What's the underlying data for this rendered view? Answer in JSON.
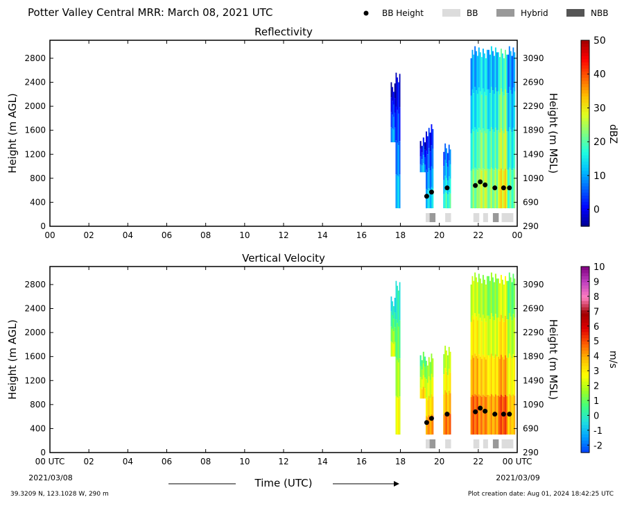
{
  "header": {
    "title": "Potter Valley Central MRR:  March 08, 2021 UTC"
  },
  "legend": {
    "items": [
      {
        "label": "BB Height",
        "kind": "dot",
        "color": "#000000"
      },
      {
        "label": "BB",
        "kind": "box",
        "color": "#dcdcdc"
      },
      {
        "label": "Hybrid",
        "kind": "box",
        "color": "#999999"
      },
      {
        "label": "NBB",
        "kind": "box",
        "color": "#555555"
      }
    ]
  },
  "x_axis": {
    "xlabel": "Time (UTC)",
    "ticks": [
      "00",
      "02",
      "04",
      "06",
      "08",
      "10",
      "12",
      "14",
      "16",
      "18",
      "20",
      "22",
      "00"
    ],
    "bottom_ticks": [
      "00 UTC",
      "02",
      "04",
      "06",
      "08",
      "10",
      "12",
      "14",
      "16",
      "18",
      "20",
      "22",
      "00 UTC"
    ],
    "start_date": "2021/03/08",
    "end_date": "2021/03/09"
  },
  "footer": {
    "location": "39.3209 N, 123.1028 W, 290 m",
    "created": "Plot creation date: Aug 01, 2024 18:42:25 UTC"
  },
  "chart_data": [
    {
      "type": "heatmap",
      "title": "Reflectivity",
      "ylabel": "Height (m AGL)",
      "y2label": "Height (m MSL)",
      "xlim": [
        0,
        24
      ],
      "ylim": [
        0,
        3100
      ],
      "y_ticks": [
        0,
        400,
        800,
        1200,
        1600,
        2000,
        2400,
        2800
      ],
      "y2_ticks": [
        290,
        690,
        1090,
        1490,
        1890,
        2290,
        2690,
        3090
      ],
      "colorbar": {
        "label": "dBZ",
        "range": [
          -5,
          50
        ],
        "ticks": [
          "0",
          "10",
          "20",
          "30",
          "40",
          "50"
        ],
        "tick_values": [
          0,
          10,
          20,
          30,
          40,
          50
        ]
      },
      "precip_segments": [
        {
          "x0": 17.5,
          "x1": 17.75,
          "top": 2400,
          "bottom": 1400,
          "level": 2
        },
        {
          "x0": 17.75,
          "x1": 18.0,
          "top": 2600,
          "bottom": 300,
          "level": 4
        },
        {
          "x0": 19.0,
          "x1": 19.3,
          "top": 1500,
          "bottom": 900,
          "level": 3
        },
        {
          "x0": 19.3,
          "x1": 19.7,
          "top": 1700,
          "bottom": 300,
          "level": 5
        },
        {
          "x0": 20.2,
          "x1": 20.6,
          "top": 1400,
          "bottom": 300,
          "level": 10
        },
        {
          "x0": 21.6,
          "x1": 22.0,
          "top": 3000,
          "bottom": 300,
          "level": 14
        },
        {
          "x0": 22.0,
          "x1": 22.5,
          "top": 3000,
          "bottom": 300,
          "level": 18
        },
        {
          "x0": 22.5,
          "x1": 23.0,
          "top": 3000,
          "bottom": 300,
          "level": 15
        },
        {
          "x0": 23.0,
          "x1": 23.5,
          "top": 3000,
          "bottom": 300,
          "level": 22
        },
        {
          "x0": 23.5,
          "x1": 23.9,
          "top": 3000,
          "bottom": 300,
          "level": 12
        }
      ],
      "bb_height": [
        {
          "x": 19.35,
          "y": 500
        },
        {
          "x": 19.6,
          "y": 570
        },
        {
          "x": 20.4,
          "y": 640
        },
        {
          "x": 21.85,
          "y": 680
        },
        {
          "x": 22.1,
          "y": 740
        },
        {
          "x": 22.35,
          "y": 690
        },
        {
          "x": 22.85,
          "y": 640
        },
        {
          "x": 23.3,
          "y": 640
        },
        {
          "x": 23.6,
          "y": 640
        }
      ],
      "bb_flags": [
        {
          "x0": 19.3,
          "x1": 19.5,
          "type": "BB"
        },
        {
          "x0": 19.5,
          "x1": 19.8,
          "type": "Hybrid"
        },
        {
          "x0": 20.3,
          "x1": 20.6,
          "type": "BB"
        },
        {
          "x0": 21.75,
          "x1": 22.05,
          "type": "BB"
        },
        {
          "x0": 22.25,
          "x1": 22.5,
          "type": "BB"
        },
        {
          "x0": 22.75,
          "x1": 23.05,
          "type": "Hybrid"
        },
        {
          "x0": 23.2,
          "x1": 23.8,
          "type": "BB"
        }
      ]
    },
    {
      "type": "heatmap",
      "title": "Vertical Velocity",
      "ylabel": "Height (m AGL)",
      "y2label": "Height (m MSL)",
      "xlim": [
        0,
        24
      ],
      "ylim": [
        0,
        3100
      ],
      "y_ticks": [
        0,
        400,
        800,
        1200,
        1600,
        2000,
        2400,
        2800
      ],
      "y2_ticks": [
        290,
        690,
        1090,
        1490,
        1890,
        2290,
        2690,
        3090
      ],
      "colorbar": {
        "label": "m/s",
        "range": [
          -2.5,
          10
        ],
        "ticks": [
          "-2",
          "-1",
          "0",
          "1",
          "2",
          "3",
          "4",
          "5",
          "6",
          "7",
          "8",
          "9",
          "10"
        ],
        "tick_values": [
          -2,
          -1,
          0,
          1,
          2,
          3,
          4,
          5,
          6,
          7,
          8,
          9,
          10
        ]
      },
      "precip_segments": [
        {
          "x0": 17.5,
          "x1": 17.75,
          "top": 2600,
          "bottom": 1600,
          "level": 0.2
        },
        {
          "x0": 17.75,
          "x1": 18.0,
          "top": 2900,
          "bottom": 300,
          "level": 0.5
        },
        {
          "x0": 19.0,
          "x1": 19.3,
          "top": 1700,
          "bottom": 900,
          "level": 1.2
        },
        {
          "x0": 19.3,
          "x1": 19.7,
          "top": 1650,
          "bottom": 300,
          "level": 2.0
        },
        {
          "x0": 20.2,
          "x1": 20.6,
          "top": 1800,
          "bottom": 300,
          "level": 2.4
        },
        {
          "x0": 21.6,
          "x1": 22.0,
          "top": 3000,
          "bottom": 300,
          "level": 2.6
        },
        {
          "x0": 22.0,
          "x1": 22.5,
          "top": 3000,
          "bottom": 300,
          "level": 2.2
        },
        {
          "x0": 22.5,
          "x1": 23.0,
          "top": 3000,
          "bottom": 300,
          "level": 1.8
        },
        {
          "x0": 23.0,
          "x1": 23.5,
          "top": 3000,
          "bottom": 300,
          "level": 2.8
        },
        {
          "x0": 23.5,
          "x1": 23.9,
          "top": 3000,
          "bottom": 300,
          "level": 1.4
        }
      ],
      "bb_height": [
        {
          "x": 19.35,
          "y": 500
        },
        {
          "x": 19.6,
          "y": 570
        },
        {
          "x": 20.4,
          "y": 640
        },
        {
          "x": 21.85,
          "y": 680
        },
        {
          "x": 22.1,
          "y": 740
        },
        {
          "x": 22.35,
          "y": 690
        },
        {
          "x": 22.85,
          "y": 640
        },
        {
          "x": 23.3,
          "y": 640
        },
        {
          "x": 23.6,
          "y": 640
        }
      ],
      "bb_flags": [
        {
          "x0": 19.3,
          "x1": 19.5,
          "type": "BB"
        },
        {
          "x0": 19.5,
          "x1": 19.8,
          "type": "Hybrid"
        },
        {
          "x0": 20.3,
          "x1": 20.6,
          "type": "BB"
        },
        {
          "x0": 21.75,
          "x1": 22.05,
          "type": "BB"
        },
        {
          "x0": 22.25,
          "x1": 22.5,
          "type": "BB"
        },
        {
          "x0": 22.75,
          "x1": 23.05,
          "type": "Hybrid"
        },
        {
          "x0": 23.2,
          "x1": 23.8,
          "type": "BB"
        }
      ]
    }
  ]
}
